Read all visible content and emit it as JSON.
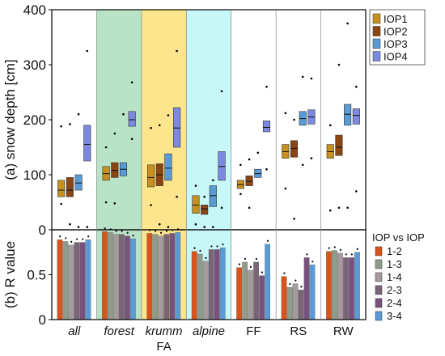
{
  "chart_data": [
    {
      "type": "boxplot",
      "panel_label": "(a)",
      "ylabel": "snow depth [cm]",
      "ylim": [
        0,
        400
      ],
      "yticks": [
        0,
        100,
        200,
        300,
        400
      ],
      "grid": false,
      "legend_position": "top-right",
      "categories": [
        "all",
        "forest",
        "krumm",
        "alpine",
        "FF",
        "RS",
        "RW"
      ],
      "category_italic": [
        true,
        true,
        true,
        true,
        false,
        false,
        false
      ],
      "group_label": "FA",
      "shaded_backgrounds": [
        {
          "category": "forest",
          "color": "#b9e3c6"
        },
        {
          "category": "krumm",
          "color": "#fde58e"
        },
        {
          "category": "alpine",
          "color": "#c7f7f7"
        }
      ],
      "series": [
        {
          "name": "IOP1",
          "color": "#c8911f",
          "boxes": [
            [
              47,
              60,
              72,
              90,
              188
            ],
            [
              50,
              90,
              102,
              115,
              150
            ],
            [
              45,
              78,
              95,
              118,
              185
            ],
            [
              10,
              30,
              45,
              62,
              80
            ],
            [
              65,
              75,
              82,
              90,
              118
            ],
            [
              75,
              130,
              142,
              155,
              212
            ],
            [
              35,
              130,
              142,
              155,
              190
            ]
          ]
        },
        {
          "name": "IOP2",
          "color": "#8b4513",
          "boxes": [
            [
              10,
              60,
              72,
              95,
              192
            ],
            [
              48,
              95,
              108,
              122,
              175
            ],
            [
              10,
              80,
              100,
              120,
              190
            ],
            [
              5,
              28,
              38,
              45,
              60
            ],
            [
              40,
              80,
              88,
              98,
              128
            ],
            [
              20,
              132,
              148,
              162,
              200
            ],
            [
              40,
              135,
              150,
              172,
              300
            ]
          ]
        },
        {
          "name": "IOP3",
          "color": "#5b9bd5",
          "boxes": [
            [
              5,
              72,
              85,
              100,
              210
            ],
            [
              110,
              98,
              110,
              122,
              210
            ],
            [
              5,
              90,
              112,
              138,
              208
            ],
            [
              5,
              42,
              62,
              80,
              90
            ],
            [
              100,
              95,
              102,
              110,
              140
            ],
            [
              118,
              190,
              202,
              215,
              278
            ],
            [
              40,
              190,
              210,
              228,
              375
            ]
          ]
        },
        {
          "name": "IOP4",
          "color": "#7b8ae0",
          "boxes": [
            [
              5,
              125,
              155,
              190,
              325
            ],
            [
              165,
              188,
              200,
              215,
              268
            ],
            [
              60,
              150,
              185,
              222,
              325
            ],
            [
              40,
              90,
              115,
              142,
              252
            ],
            [
              110,
              178,
              186,
              198,
              260
            ],
            [
              130,
              192,
              205,
              218,
              275
            ],
            [
              70,
              192,
              208,
              220,
              260
            ]
          ]
        }
      ]
    },
    {
      "type": "bar",
      "panel_label": "(b)",
      "ylabel": "R value",
      "ylim": [
        0,
        1
      ],
      "yticks": [
        0,
        0.5
      ],
      "legend_title": "IOP vs IOP",
      "legend_position": "right",
      "categories": [
        "all",
        "forest",
        "krumm",
        "alpine",
        "FF",
        "RS",
        "RW"
      ],
      "series": [
        {
          "name": "1-2",
          "color": "#d9541a",
          "values": [
            0.89,
            0.98,
            0.96,
            0.76,
            0.58,
            0.48,
            0.76
          ]
        },
        {
          "name": "1-3",
          "color": "#8f9c8c",
          "values": [
            0.87,
            0.97,
            0.95,
            0.73,
            0.64,
            0.36,
            0.77
          ]
        },
        {
          "name": "1-4",
          "color": "#a59a9c",
          "values": [
            0.83,
            0.95,
            0.93,
            0.65,
            0.55,
            0.4,
            0.74
          ]
        },
        {
          "name": "2-3",
          "color": "#7a6577",
          "values": [
            0.86,
            0.95,
            0.95,
            0.78,
            0.64,
            0.33,
            0.69
          ]
        },
        {
          "name": "2-4",
          "color": "#7a517e",
          "values": [
            0.86,
            0.93,
            0.96,
            0.78,
            0.49,
            0.69,
            0.69
          ]
        },
        {
          "name": "3-4",
          "color": "#5b9bd5",
          "values": [
            0.89,
            0.9,
            0.97,
            0.8,
            0.84,
            0.61,
            0.75
          ]
        }
      ]
    }
  ]
}
